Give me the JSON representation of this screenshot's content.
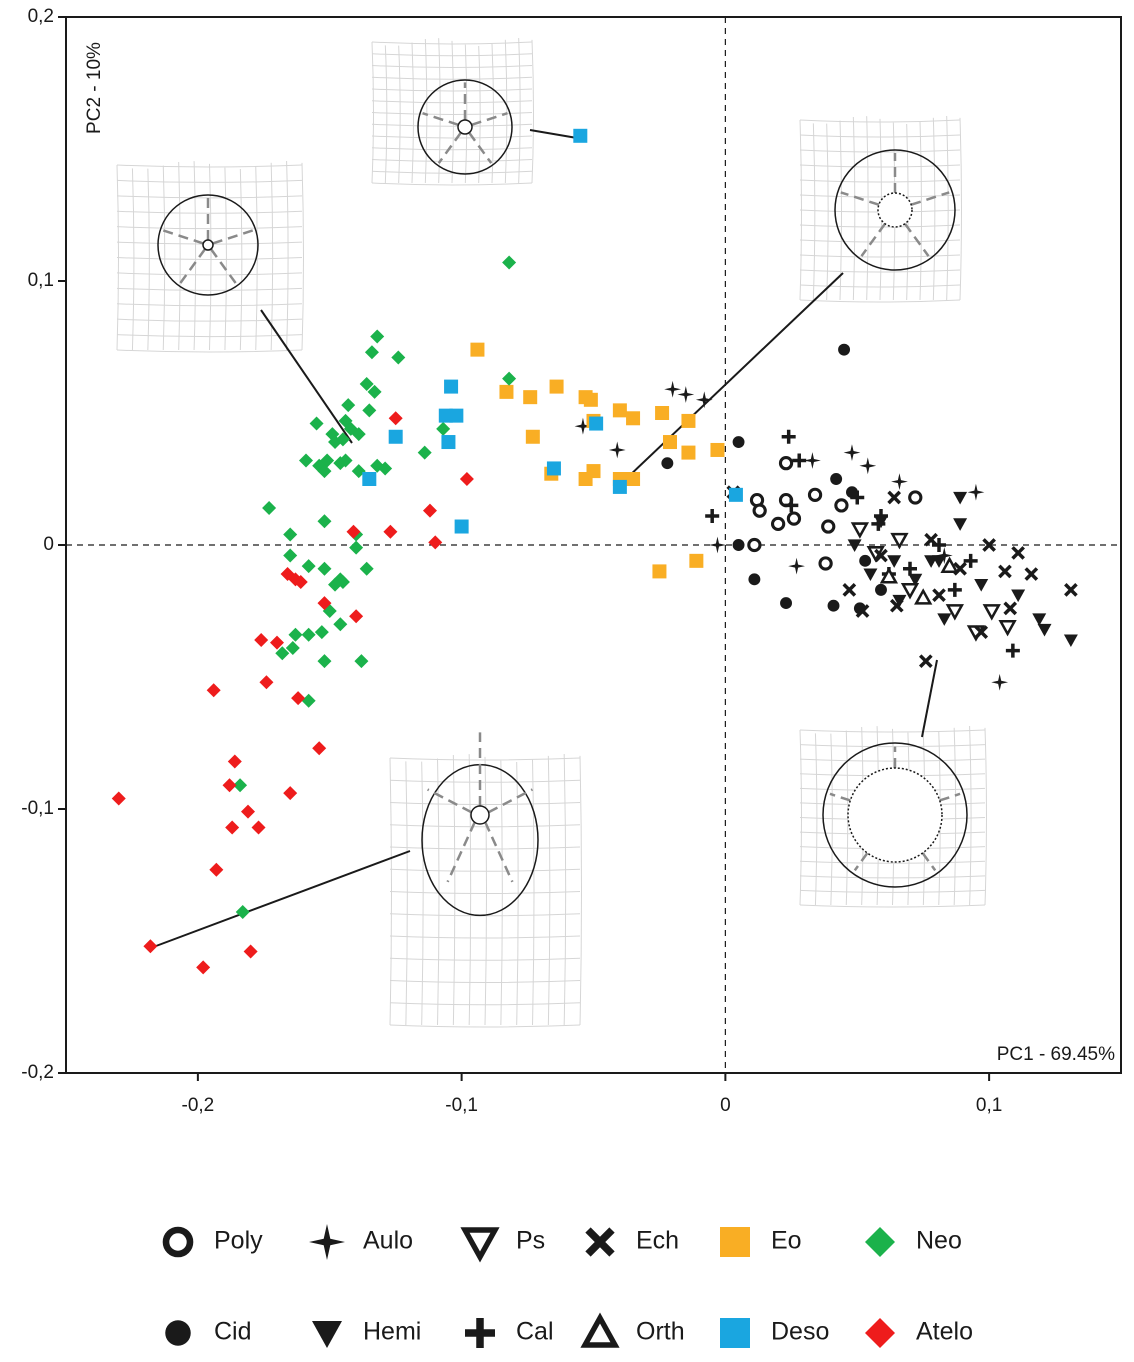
{
  "chart_data": {
    "type": "scatter",
    "xlabel": "PC1 - 69.45%",
    "ylabel": "PC2 - 10%",
    "xlim": [
      -0.25,
      0.15
    ],
    "ylim": [
      -0.2,
      0.2
    ],
    "xticks": [
      {
        "value": -0.2,
        "label": "-0,2"
      },
      {
        "value": -0.1,
        "label": "-0,1"
      },
      0,
      {
        "value": 0.1,
        "label": "0,1"
      }
    ],
    "yticks": [
      {
        "value": -0.2,
        "label": "-0,2"
      },
      {
        "value": -0.1,
        "label": "-0,1"
      },
      0,
      {
        "value": 0.1,
        "label": "0,1"
      },
      {
        "value": 0.2,
        "label": "0,2"
      }
    ],
    "zero_lines": true,
    "series": [
      {
        "name": "Poly",
        "marker": "open-circle",
        "color": "#1a1a1a",
        "x": [
          0.023,
          0.072,
          0.012,
          0.023,
          0.034,
          0.02,
          0.026,
          0.039,
          0.011,
          0.038,
          0.013,
          0.044
        ],
        "values": [
          0.031,
          0.018,
          0.017,
          0.017,
          0.019,
          0.008,
          0.01,
          0.007,
          0.0,
          -0.007,
          0.013,
          0.015
        ]
      },
      {
        "name": "Aulo",
        "marker": "star",
        "color": "#1a1a1a",
        "x": [
          -0.02,
          -0.015,
          -0.008,
          -0.054,
          -0.041,
          -0.003,
          0.027,
          0.048,
          0.054,
          0.066,
          0.095,
          0.104,
          0.033,
          0.083
        ],
        "values": [
          0.059,
          0.057,
          0.055,
          0.045,
          0.036,
          0.0,
          -0.008,
          0.035,
          0.03,
          0.024,
          0.02,
          -0.052,
          0.032,
          -0.004
        ]
      },
      {
        "name": "Ps",
        "marker": "open-down-triangle",
        "color": "#1a1a1a",
        "x": [
          0.101,
          0.107,
          0.095,
          0.087,
          0.057,
          0.07,
          0.066,
          0.051
        ],
        "values": [
          -0.025,
          -0.031,
          -0.033,
          -0.025,
          -0.003,
          -0.017,
          0.002,
          0.006
        ]
      },
      {
        "name": "Ech",
        "marker": "x",
        "color": "#1a1a1a",
        "x": [
          0.003,
          0.076,
          0.131,
          0.116,
          0.111,
          0.1,
          0.052,
          0.064,
          0.097,
          0.065,
          0.081,
          0.089,
          0.059,
          0.106,
          0.047,
          0.078,
          0.108
        ],
        "values": [
          0.02,
          -0.044,
          -0.017,
          -0.011,
          -0.003,
          0.0,
          -0.025,
          0.018,
          -0.033,
          -0.023,
          -0.019,
          -0.009,
          -0.004,
          -0.01,
          -0.017,
          0.002,
          -0.024
        ]
      },
      {
        "name": "Eo",
        "marker": "square",
        "color": "#f9ae24",
        "x": [
          -0.094,
          -0.083,
          -0.074,
          -0.064,
          -0.053,
          -0.051,
          -0.05,
          -0.04,
          -0.035,
          -0.024,
          -0.014,
          -0.073,
          -0.021,
          -0.014,
          -0.003,
          -0.066,
          -0.053,
          -0.05,
          -0.04,
          -0.035,
          -0.025,
          -0.011
        ],
        "values": [
          0.074,
          0.058,
          0.056,
          0.06,
          0.056,
          0.055,
          0.047,
          0.051,
          0.048,
          0.05,
          0.047,
          0.041,
          0.039,
          0.035,
          0.036,
          0.027,
          0.025,
          0.028,
          0.025,
          0.025,
          -0.01,
          -0.006
        ]
      },
      {
        "name": "Neo",
        "marker": "diamond",
        "color": "#1bb24b",
        "x": [
          -0.082,
          -0.132,
          -0.124,
          -0.134,
          -0.136,
          -0.133,
          -0.143,
          -0.135,
          -0.155,
          -0.144,
          -0.139,
          -0.149,
          -0.148,
          -0.145,
          -0.142,
          -0.151,
          -0.146,
          -0.144,
          -0.159,
          -0.154,
          -0.152,
          -0.139,
          -0.132,
          -0.129,
          -0.114,
          -0.107,
          -0.082,
          -0.173,
          -0.152,
          -0.165,
          -0.14,
          -0.14,
          -0.165,
          -0.158,
          -0.152,
          -0.146,
          -0.145,
          -0.136,
          -0.148,
          -0.15,
          -0.146,
          -0.153,
          -0.163,
          -0.158,
          -0.164,
          -0.168,
          -0.152,
          -0.138,
          -0.158,
          -0.184,
          -0.183
        ],
        "values": [
          0.107,
          0.079,
          0.071,
          0.073,
          0.061,
          0.058,
          0.053,
          0.051,
          0.046,
          0.047,
          0.042,
          0.042,
          0.039,
          0.04,
          0.044,
          0.032,
          0.031,
          0.032,
          0.032,
          0.03,
          0.028,
          0.028,
          0.03,
          0.029,
          0.035,
          0.044,
          0.063,
          0.014,
          0.009,
          0.004,
          0.004,
          -0.001,
          -0.004,
          -0.008,
          -0.009,
          -0.013,
          -0.014,
          -0.009,
          -0.015,
          -0.025,
          -0.03,
          -0.033,
          -0.034,
          -0.034,
          -0.039,
          -0.041,
          -0.044,
          -0.044,
          -0.059,
          -0.091,
          -0.139
        ]
      },
      {
        "name": "Cid",
        "marker": "circle",
        "color": "#1a1a1a",
        "x": [
          0.045,
          0.005,
          -0.022,
          0.011,
          0.023,
          0.041,
          0.051,
          0.005,
          0.042,
          0.048,
          0.053,
          0.059
        ],
        "values": [
          0.074,
          0.039,
          0.031,
          -0.013,
          -0.022,
          -0.023,
          -0.024,
          0.0,
          0.025,
          0.02,
          -0.006,
          -0.017
        ]
      },
      {
        "name": "Hemi",
        "marker": "down-triangle",
        "color": "#1a1a1a",
        "x": [
          0.131,
          0.121,
          0.119,
          0.089,
          0.089,
          0.078,
          0.083,
          0.064,
          0.055,
          0.072,
          0.111,
          0.097,
          0.049,
          0.059,
          0.081,
          0.066
        ],
        "values": [
          -0.036,
          -0.032,
          -0.028,
          0.018,
          0.008,
          -0.006,
          -0.028,
          -0.006,
          -0.011,
          -0.013,
          -0.019,
          -0.015,
          0.0,
          0.009,
          -0.006,
          -0.021
        ]
      },
      {
        "name": "Cal",
        "marker": "plus",
        "color": "#1a1a1a",
        "x": [
          0.024,
          0.028,
          -0.005,
          0.109,
          0.059,
          0.05,
          0.058,
          0.025,
          0.081,
          0.07,
          0.093,
          0.062,
          0.087
        ],
        "values": [
          0.041,
          0.032,
          0.011,
          -0.04,
          0.011,
          0.018,
          0.008,
          0.015,
          0.0,
          -0.009,
          -0.006,
          -0.011,
          -0.017
        ]
      },
      {
        "name": "Orth",
        "marker": "open-up-triangle",
        "color": "#1a1a1a",
        "x": [
          0.062,
          0.075,
          0.085
        ],
        "values": [
          -0.012,
          -0.02,
          -0.008
        ]
      },
      {
        "name": "Deso",
        "marker": "square",
        "color": "#1aa6e0",
        "x": [
          -0.055,
          -0.104,
          -0.106,
          -0.102,
          -0.125,
          -0.105,
          -0.135,
          -0.1,
          -0.065,
          -0.049,
          -0.04,
          0.004
        ],
        "values": [
          0.155,
          0.06,
          0.049,
          0.049,
          0.041,
          0.039,
          0.025,
          0.007,
          0.029,
          0.046,
          0.022,
          0.019
        ]
      },
      {
        "name": "Atelo",
        "marker": "diamond",
        "color": "#ee1c1c",
        "x": [
          -0.125,
          -0.098,
          -0.112,
          -0.11,
          -0.127,
          -0.141,
          -0.166,
          -0.163,
          -0.161,
          -0.152,
          -0.14,
          -0.176,
          -0.17,
          -0.174,
          -0.194,
          -0.162,
          -0.154,
          -0.186,
          -0.165,
          -0.188,
          -0.23,
          -0.181,
          -0.187,
          -0.177,
          -0.193,
          -0.218,
          -0.18,
          -0.198
        ],
        "values": [
          0.048,
          0.025,
          0.013,
          0.001,
          0.005,
          0.005,
          -0.011,
          -0.013,
          -0.014,
          -0.022,
          -0.027,
          -0.036,
          -0.037,
          -0.052,
          -0.055,
          -0.058,
          -0.077,
          -0.082,
          -0.094,
          -0.091,
          -0.096,
          -0.101,
          -0.107,
          -0.107,
          -0.123,
          -0.152,
          -0.154,
          -0.16
        ]
      }
    ]
  }
}
